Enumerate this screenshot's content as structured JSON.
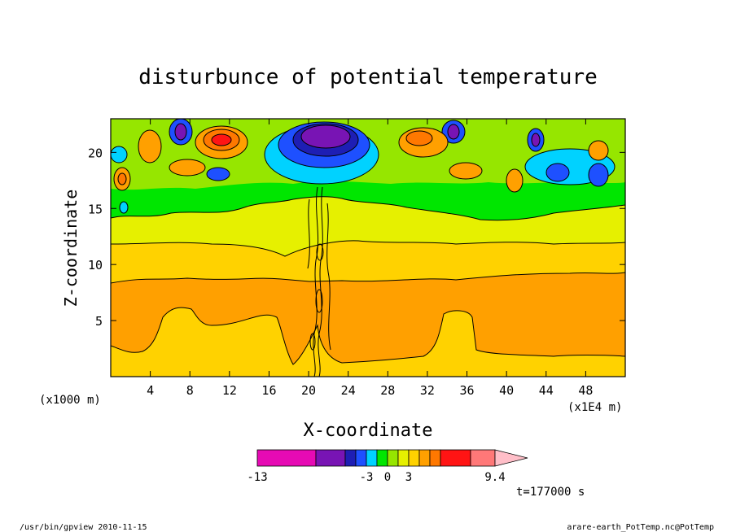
{
  "chart_data": {
    "type": "heatmap",
    "title": "disturbunce of potential temperature",
    "xlabel": "X-coordinate",
    "ylabel": "Z-coordinate",
    "x_unit_left": "(x1000 m)",
    "x_unit_right": "(x1E4 m)",
    "xlim": [
      0,
      52
    ],
    "ylim": [
      0,
      23
    ],
    "x_ticks": [
      4,
      8,
      12,
      16,
      20,
      24,
      28,
      32,
      36,
      40,
      44,
      48
    ],
    "y_ticks": [
      5,
      10,
      15,
      20
    ],
    "colorbar": {
      "labels": [
        "-13",
        "-3",
        "0",
        "3",
        "9.4"
      ],
      "colors": [
        "#e60ab4",
        "#7814b4",
        "#1e1eb4",
        "#1e50ff",
        "#00d2ff",
        "#00e600",
        "#96e600",
        "#e6f000",
        "#ffd200",
        "#ffa000",
        "#ff7800",
        "#ff1414",
        "#ff7878",
        "#ffbec8"
      ]
    },
    "time": "t=177000 s"
  },
  "footer": {
    "left": "/usr/bin/gpview   2010-11-15",
    "right": "arare-earth_PotTemp.nc@PotTemp"
  }
}
